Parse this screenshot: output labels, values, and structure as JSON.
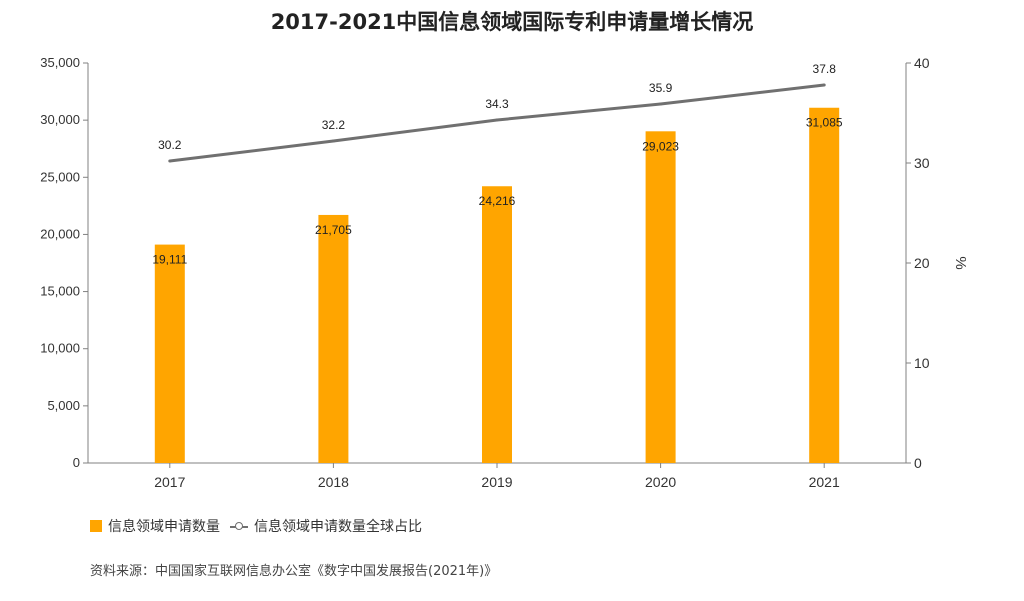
{
  "title": "2017-2021中国信息领域国际专利申请量增长情况",
  "legend": {
    "bar_label": "信息领域申请数量",
    "line_label": "信息领域申请数量全球占比"
  },
  "source": "资料来源：中国国家互联网信息办公室《数字中国发展报告(2021年)》",
  "colors": {
    "bar": "#FFA500",
    "line": "#707070",
    "axis": "#808080"
  },
  "chart_data": {
    "type": "bar",
    "title": "2017-2021中国信息领域国际专利申请量增长情况",
    "categories": [
      "2017",
      "2018",
      "2019",
      "2020",
      "2021"
    ],
    "series": [
      {
        "name": "信息领域申请数量",
        "type": "bar",
        "axis": "left",
        "values": [
          19111,
          21705,
          24216,
          29023,
          31085
        ],
        "labels": [
          "19,111",
          "21,705",
          "24,216",
          "29,023",
          "31,085"
        ]
      },
      {
        "name": "信息领域申请数量全球占比",
        "type": "line",
        "axis": "right",
        "values": [
          30.2,
          32.2,
          34.3,
          35.9,
          37.8
        ],
        "labels": [
          "30.2",
          "32.2",
          "34.3",
          "35.9",
          "37.8"
        ]
      }
    ],
    "y_left": {
      "min": 0,
      "max": 35000,
      "ticks": [
        0,
        5000,
        10000,
        15000,
        20000,
        25000,
        30000,
        35000
      ],
      "tick_labels": [
        "0",
        "5,000",
        "10,000",
        "15,000",
        "20,000",
        "25,000",
        "30,000",
        "35,000"
      ]
    },
    "y_right": {
      "min": 0,
      "max": 40,
      "label": "%",
      "ticks": [
        0,
        10,
        20,
        30,
        40
      ],
      "tick_labels": [
        "0",
        "10",
        "20",
        "30",
        "40"
      ]
    },
    "grid": false,
    "legend_position": "bottom-left"
  }
}
